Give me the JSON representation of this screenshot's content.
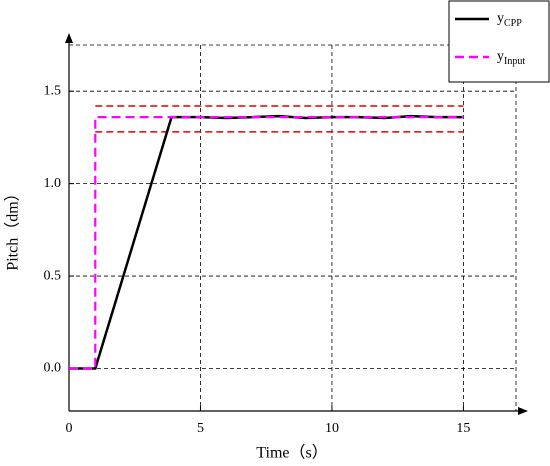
{
  "chart_data": {
    "type": "line",
    "xlabel": "Time（s）",
    "ylabel": "Pitch（dm）",
    "xlim": [
      0,
      17
    ],
    "ylim": [
      -0.23,
      1.75
    ],
    "xticks": [
      0,
      5,
      10,
      15
    ],
    "yticks": [
      {
        "value": 0,
        "label": "0.0"
      },
      {
        "value": 0.5,
        "label": "0.5"
      },
      {
        "value": 1,
        "label": "1.0"
      },
      {
        "value": 1.5,
        "label": "1.5"
      }
    ],
    "grid": true,
    "legend": "top-right",
    "series": [
      {
        "name": "yCPP",
        "color": "#000000",
        "dash": false,
        "x": [
          0,
          0.5,
          1,
          3.9,
          5,
          6,
          7,
          8,
          9,
          10,
          11,
          12,
          13,
          14,
          15
        ],
        "values": [
          0,
          0,
          0,
          1.36,
          1.36,
          1.355,
          1.36,
          1.365,
          1.355,
          1.36,
          1.36,
          1.355,
          1.365,
          1.36,
          1.36
        ]
      },
      {
        "name": "yInput",
        "color": "#ff00ff",
        "dash": true,
        "x": [
          0,
          1,
          1,
          15
        ],
        "values": [
          0,
          0,
          1.36,
          1.36
        ]
      }
    ],
    "reference_lines": [
      {
        "value": 1.42,
        "x": [
          1,
          15
        ],
        "color": "#e00000"
      },
      {
        "value": 1.28,
        "x": [
          1,
          15
        ],
        "color": "#e00000"
      }
    ]
  }
}
